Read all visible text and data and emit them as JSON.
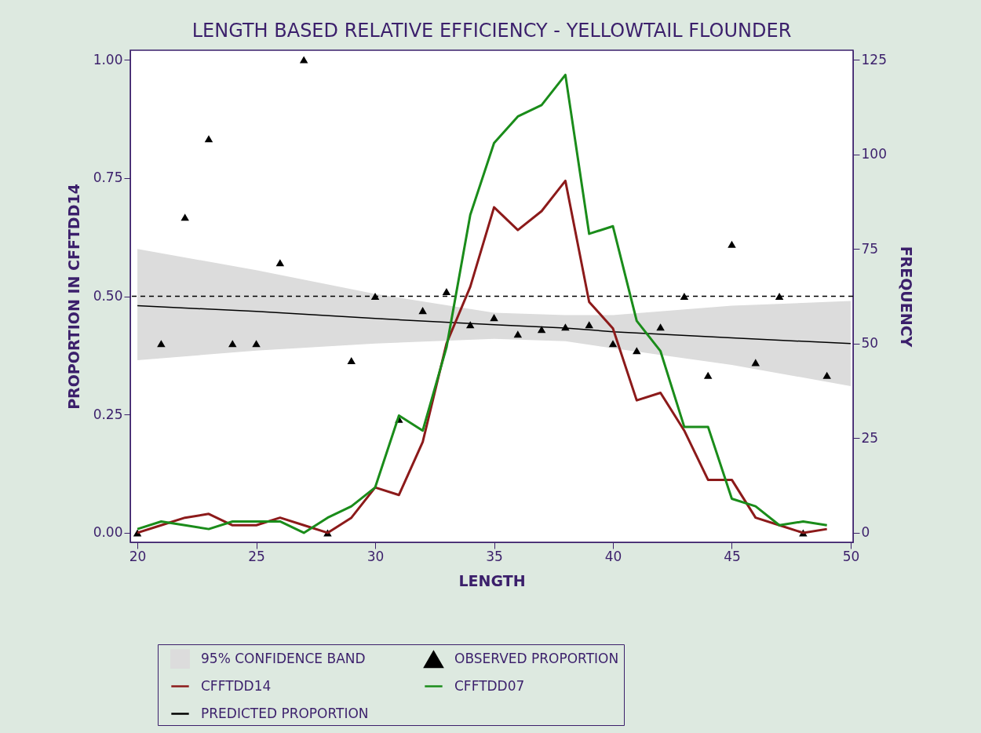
{
  "chart_data": {
    "type": "line",
    "title": "LENGTH BASED RELATIVE EFFICIENCY - YELLOWTAIL FLOUNDER",
    "xlabel": "LENGTH",
    "ylabel": "PROPORTION IN CFFTDD14",
    "y2label": "FREQUENCY",
    "xlim": [
      19.7,
      50.1
    ],
    "xticks": [
      20,
      25,
      30,
      35,
      40,
      45,
      50
    ],
    "ylim": [
      -0.02,
      1.02
    ],
    "yticks": [
      {
        "value": 0,
        "label": "0.00"
      },
      {
        "value": 0.25,
        "label": "0.25"
      },
      {
        "value": 0.5,
        "label": "0.50"
      },
      {
        "value": 0.75,
        "label": "0.75"
      },
      {
        "value": 1,
        "label": "1.00"
      }
    ],
    "y2lim": [
      -2.5,
      127.5
    ],
    "y2ticks": [
      0,
      25,
      50,
      75,
      100,
      125
    ],
    "legend": "bottom",
    "ref_lines": [
      {
        "axis": "y",
        "value": 0.5,
        "label": null,
        "color": "#000000",
        "line_style": "dashed"
      }
    ],
    "series": [
      {
        "name": "95% CONFIDENCE BAND",
        "type": "area",
        "color": "#dcdcdc"
      },
      {
        "name": "OBSERVED PROPORTION",
        "type": "scatter",
        "marker": "triangle",
        "color": "#000000",
        "x": [
          20,
          21,
          22,
          23,
          24,
          25,
          26,
          27,
          28,
          29,
          30,
          31,
          32,
          33,
          34,
          35,
          36,
          37,
          38,
          39,
          40,
          41,
          42,
          43,
          44,
          45,
          46,
          47,
          48,
          49
        ],
        "values": [
          0,
          0.4,
          0.667,
          0.833,
          0.4,
          0.4,
          0.571,
          1,
          0,
          0.364,
          0.5,
          0.24,
          0.47,
          0.51,
          0.44,
          0.455,
          0.42,
          0.43,
          0.435,
          0.44,
          0.4,
          0.385,
          0.435,
          0.5,
          0.333,
          0.61,
          0.36,
          0.5,
          0,
          0.333
        ]
      },
      {
        "name": "CFFTDD14",
        "type": "line",
        "axis": "y2",
        "color": "#8c1a1a",
        "x": [
          20,
          21,
          22,
          23,
          24,
          25,
          26,
          27,
          28,
          29,
          30,
          31,
          32,
          33,
          34,
          35,
          36,
          37,
          38,
          39,
          40,
          41,
          42,
          43,
          44,
          45,
          46,
          47,
          48,
          49
        ],
        "values": [
          0,
          2,
          4,
          5,
          2,
          2,
          4,
          2,
          0,
          4,
          12,
          10,
          24,
          50,
          65,
          86,
          80,
          85,
          93,
          61,
          54,
          35,
          37,
          27,
          14,
          14,
          4,
          2,
          0,
          1
        ]
      },
      {
        "name": "CFFTDD07",
        "type": "line",
        "axis": "y2",
        "color": "#1a8c1a",
        "x": [
          20,
          21,
          22,
          23,
          24,
          25,
          26,
          27,
          28,
          29,
          30,
          31,
          32,
          33,
          34,
          35,
          36,
          37,
          38,
          39,
          40,
          41,
          42,
          43,
          44,
          45,
          46,
          47,
          48,
          49
        ],
        "values": [
          1,
          3,
          2,
          1,
          3,
          3,
          3,
          0,
          4,
          7,
          12,
          31,
          27,
          49,
          84,
          103,
          110,
          113,
          121,
          79,
          81,
          56,
          48,
          28,
          28,
          9,
          7,
          2,
          3,
          2
        ]
      },
      {
        "name": "PREDICTED PROPORTION",
        "type": "line",
        "color": "#000000",
        "x": [
          20,
          25,
          30,
          35,
          38,
          40,
          45,
          50
        ],
        "values": [
          0.48,
          0.468,
          0.453,
          0.44,
          0.433,
          0.425,
          0.412,
          0.4
        ],
        "lower": [
          0.365,
          0.385,
          0.4,
          0.41,
          0.405,
          0.39,
          0.355,
          0.31
        ],
        "upper": [
          0.6,
          0.555,
          0.505,
          0.465,
          0.46,
          0.46,
          0.48,
          0.49
        ]
      }
    ]
  }
}
